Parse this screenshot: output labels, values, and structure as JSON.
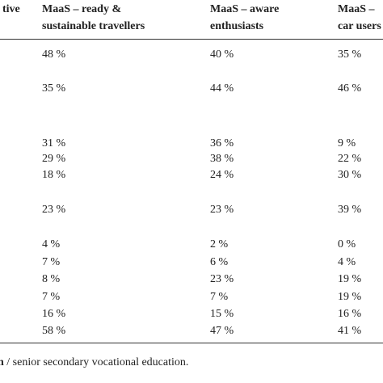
{
  "table": {
    "header": [
      [
        "tive"
      ],
      [
        "MaaS – ready &",
        "sustainable travellers"
      ],
      [
        "MaaS – aware",
        "enthusiasts"
      ],
      [
        "MaaS –",
        "car users"
      ]
    ],
    "rows": [
      [
        "48 %",
        "40 %",
        "35 %"
      ],
      [
        "35 %",
        "44 %",
        "46 %"
      ],
      [
        "31 %",
        "36 %",
        "9 %"
      ],
      [
        "29 %",
        "38 %",
        "22 %"
      ],
      [
        "18 %",
        "24 %",
        "30 %"
      ],
      [
        "23 %",
        "23 %",
        "39 %"
      ],
      [
        "4 %",
        "2 %",
        "0 %"
      ],
      [
        "7 %",
        "6 %",
        "4 %"
      ],
      [
        "8 %",
        "23 %",
        "19 %"
      ],
      [
        "7 %",
        "7 %",
        "19 %"
      ],
      [
        "16 %",
        "15 %",
        "16 %"
      ],
      [
        "58 %",
        "47 %",
        "41 %"
      ]
    ]
  },
  "footnote": {
    "lead": "n",
    "text": " / senior secondary vocational education."
  }
}
